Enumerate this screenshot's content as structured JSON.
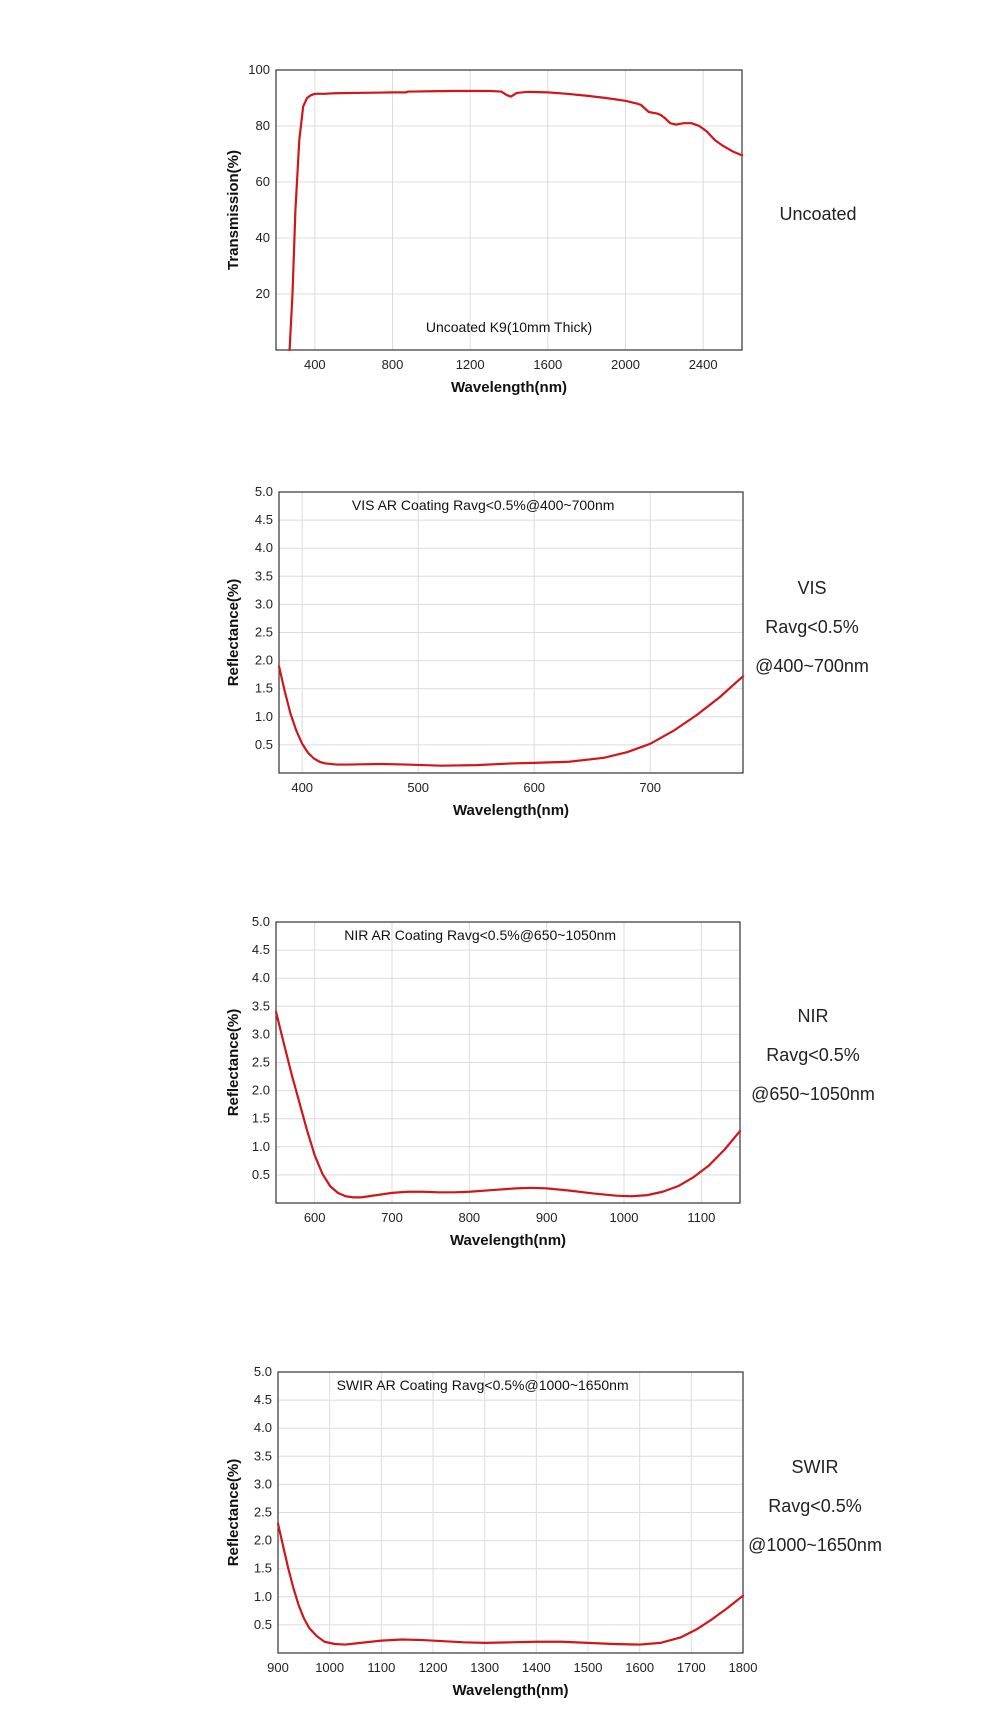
{
  "colors": {
    "curve": "#d0161b"
  },
  "chart_data": [
    {
      "type": "line",
      "title": "Uncoated K9(10mm Thick)",
      "xlabel": "Wavelength(nm)",
      "ylabel": "Transmission(%)",
      "xlim": [
        200,
        2600
      ],
      "ylim": [
        0,
        100
      ],
      "xticks": [
        400,
        800,
        1200,
        1600,
        2000,
        2400
      ],
      "yticks": [
        20,
        40,
        60,
        80,
        100
      ],
      "side_lines": [
        "Uncoated"
      ],
      "series": [
        {
          "x": [
            270,
            285,
            300,
            320,
            340,
            360,
            380,
            400,
            450,
            500,
            600,
            700,
            800,
            870,
            880,
            900,
            1000,
            1100,
            1200,
            1300,
            1360,
            1390,
            1410,
            1440,
            1500,
            1600,
            1700,
            1800,
            1900,
            2000,
            2060,
            2080,
            2120,
            2160,
            2180,
            2200,
            2230,
            2260,
            2300,
            2340,
            2380,
            2420,
            2460,
            2500,
            2550,
            2600
          ],
          "y": [
            0,
            20,
            50,
            75,
            87,
            90,
            91,
            91.5,
            91.5,
            91.7,
            91.8,
            91.9,
            92,
            92,
            92.3,
            92.3,
            92.4,
            92.5,
            92.5,
            92.5,
            92.3,
            91,
            90.5,
            91.8,
            92.2,
            92,
            91.5,
            90.8,
            90,
            89,
            88,
            87.5,
            85,
            84.5,
            84,
            83,
            81,
            80.5,
            81,
            81,
            80,
            78,
            75,
            73,
            71,
            69.5
          ]
        }
      ]
    },
    {
      "type": "line",
      "title": "VIS AR Coating Ravg<0.5%@400~700nm",
      "xlabel": "Wavelength(nm)",
      "ylabel": "Reflectance(%)",
      "xlim": [
        380,
        780
      ],
      "ylim": [
        0,
        5
      ],
      "xticks": [
        400,
        500,
        600,
        700
      ],
      "yticks": [
        "0.5",
        "1.0",
        "1.5",
        "2.0",
        "2.5",
        "3.0",
        "3.5",
        "4.0",
        "4.5",
        "5.0"
      ],
      "side_lines": [
        "VIS",
        "Ravg<0.5%",
        "@400~700nm"
      ],
      "series": [
        {
          "x": [
            380,
            385,
            390,
            395,
            400,
            405,
            410,
            415,
            420,
            430,
            440,
            450,
            470,
            490,
            520,
            550,
            580,
            600,
            630,
            660,
            680,
            700,
            720,
            740,
            760,
            780
          ],
          "y": [
            1.9,
            1.45,
            1.05,
            0.75,
            0.52,
            0.36,
            0.26,
            0.2,
            0.17,
            0.15,
            0.15,
            0.155,
            0.16,
            0.15,
            0.13,
            0.14,
            0.17,
            0.18,
            0.2,
            0.27,
            0.37,
            0.52,
            0.75,
            1.03,
            1.35,
            1.72
          ]
        }
      ]
    },
    {
      "type": "line",
      "title": "NIR AR Coating Ravg<0.5%@650~1050nm",
      "xlabel": "Wavelength(nm)",
      "ylabel": "Reflectance(%)",
      "xlim": [
        550,
        1150
      ],
      "ylim": [
        0,
        5
      ],
      "xticks": [
        600,
        700,
        800,
        900,
        1000,
        1100
      ],
      "yticks": [
        "0.5",
        "1.0",
        "1.5",
        "2.0",
        "2.5",
        "3.0",
        "3.5",
        "4.0",
        "4.5",
        "5.0"
      ],
      "side_lines": [
        "NIR",
        "Ravg<0.5%",
        "@650~1050nm"
      ],
      "series": [
        {
          "x": [
            550,
            560,
            570,
            580,
            590,
            600,
            610,
            620,
            630,
            640,
            650,
            660,
            680,
            700,
            720,
            740,
            760,
            780,
            800,
            830,
            860,
            880,
            900,
            930,
            960,
            990,
            1010,
            1030,
            1050,
            1070,
            1090,
            1110,
            1130,
            1150
          ],
          "y": [
            3.4,
            2.85,
            2.3,
            1.8,
            1.3,
            0.85,
            0.52,
            0.3,
            0.18,
            0.12,
            0.1,
            0.1,
            0.14,
            0.18,
            0.2,
            0.2,
            0.19,
            0.19,
            0.2,
            0.23,
            0.26,
            0.27,
            0.26,
            0.22,
            0.17,
            0.13,
            0.12,
            0.14,
            0.2,
            0.3,
            0.46,
            0.67,
            0.95,
            1.28
          ]
        }
      ]
    },
    {
      "type": "line",
      "title": "SWIR AR Coating Ravg<0.5%@1000~1650nm",
      "xlabel": "Wavelength(nm)",
      "ylabel": "Reflectance(%)",
      "xlim": [
        900,
        1800
      ],
      "ylim": [
        0,
        5
      ],
      "xticks": [
        900,
        1000,
        1100,
        1200,
        1300,
        1400,
        1500,
        1600,
        1700,
        1800
      ],
      "yticks": [
        "0.5",
        "1.0",
        "1.5",
        "2.0",
        "2.5",
        "3.0",
        "3.5",
        "4.0",
        "4.5",
        "5.0"
      ],
      "side_lines": [
        "SWIR",
        "Ravg<0.5%",
        "@1000~1650nm"
      ],
      "series": [
        {
          "x": [
            900,
            910,
            920,
            930,
            940,
            950,
            960,
            975,
            990,
            1010,
            1030,
            1060,
            1100,
            1140,
            1180,
            1220,
            1260,
            1300,
            1350,
            1400,
            1450,
            1500,
            1550,
            1600,
            1640,
            1680,
            1710,
            1740,
            1770,
            1800
          ],
          "y": [
            2.3,
            1.9,
            1.5,
            1.15,
            0.85,
            0.62,
            0.45,
            0.3,
            0.2,
            0.16,
            0.15,
            0.18,
            0.22,
            0.24,
            0.23,
            0.21,
            0.19,
            0.18,
            0.19,
            0.2,
            0.2,
            0.18,
            0.16,
            0.15,
            0.18,
            0.28,
            0.42,
            0.6,
            0.8,
            1.02
          ]
        }
      ]
    }
  ]
}
